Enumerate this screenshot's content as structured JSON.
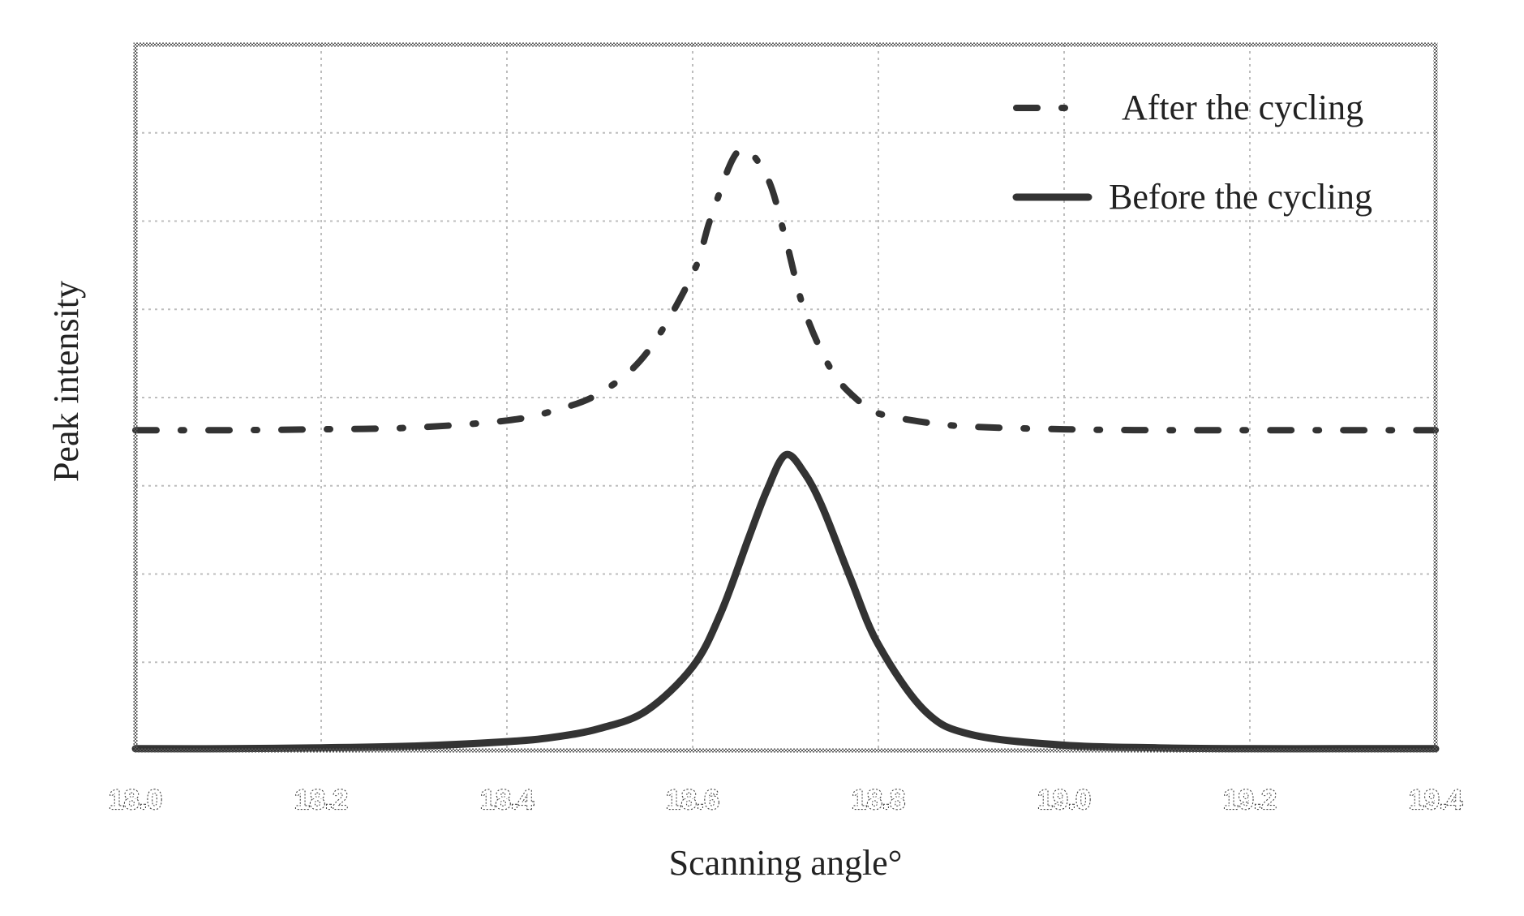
{
  "chart_data": {
    "type": "line",
    "title": "",
    "xlabel": "Scanning angle°",
    "ylabel": "Peak intensity",
    "xlim": [
      18.0,
      19.4
    ],
    "ylim": [
      0,
      8
    ],
    "x_ticks": [
      "18.0",
      "18.2",
      "18.4",
      "18.6",
      "18.8",
      "19.0",
      "19.2",
      "19.4"
    ],
    "grid": true,
    "legend_position": "top-right",
    "series": [
      {
        "name": "After the cycling",
        "style": "dash-dot",
        "color": "#333333",
        "x": [
          18.0,
          18.1,
          18.2,
          18.3,
          18.4,
          18.45,
          18.5,
          18.55,
          18.6,
          18.62,
          18.65,
          18.68,
          18.7,
          18.72,
          18.75,
          18.78,
          18.8,
          18.85,
          18.9,
          19.0,
          19.1,
          19.2,
          19.3,
          19.4
        ],
        "y": [
          3.63,
          3.63,
          3.64,
          3.66,
          3.74,
          3.85,
          4.05,
          4.5,
          5.4,
          6.05,
          6.8,
          6.5,
          5.8,
          5.0,
          4.3,
          3.95,
          3.82,
          3.72,
          3.67,
          3.64,
          3.63,
          3.63,
          3.63,
          3.63
        ]
      },
      {
        "name": "Before the cycling",
        "style": "solid",
        "color": "#333333",
        "x": [
          18.0,
          18.1,
          18.2,
          18.3,
          18.4,
          18.45,
          18.5,
          18.55,
          18.6,
          18.63,
          18.66,
          18.68,
          18.7,
          18.72,
          18.74,
          18.77,
          18.8,
          18.85,
          18.9,
          19.0,
          19.1,
          19.2,
          19.3,
          19.4
        ],
        "y": [
          0.02,
          0.02,
          0.03,
          0.05,
          0.1,
          0.15,
          0.25,
          0.45,
          0.95,
          1.55,
          2.4,
          2.95,
          3.35,
          3.15,
          2.75,
          1.95,
          1.2,
          0.45,
          0.18,
          0.06,
          0.03,
          0.02,
          0.02,
          0.02
        ]
      }
    ]
  }
}
